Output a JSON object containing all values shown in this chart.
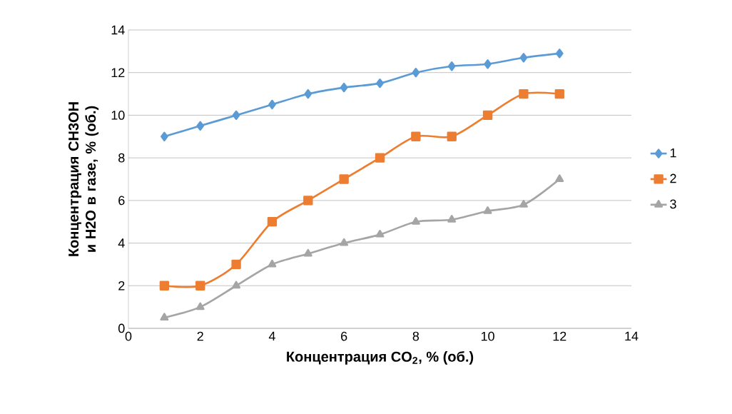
{
  "chart_data": {
    "type": "line",
    "xlabel": "Концентрация CO$_{2}$, % (об.)",
    "ylabel": "Концентрация CH3OH и H2O в газе, % (об.)",
    "x": [
      1,
      2,
      3,
      4,
      5,
      6,
      7,
      8,
      9,
      10,
      11,
      12
    ],
    "series": [
      {
        "name": "1",
        "color": "#5b9bd5",
        "marker": "diamond",
        "values": [
          9,
          9.5,
          10,
          10.5,
          11,
          11.3,
          11.5,
          12,
          12.3,
          12.4,
          12.7,
          12.9
        ]
      },
      {
        "name": "2",
        "color": "#ed7d31",
        "marker": "square",
        "values": [
          2,
          2,
          3,
          5,
          6,
          7,
          8,
          9,
          9,
          10,
          11,
          11
        ]
      },
      {
        "name": "3",
        "color": "#a5a5a5",
        "marker": "triangle",
        "values": [
          0.5,
          1,
          2,
          3,
          3.5,
          4,
          4.4,
          5,
          5.1,
          5.5,
          5.8,
          7
        ]
      }
    ],
    "xlim": [
      0,
      14
    ],
    "ylim": [
      0,
      14
    ],
    "xticks": [
      0,
      2,
      4,
      6,
      8,
      10,
      12,
      14
    ],
    "yticks": [
      0,
      2,
      4,
      6,
      8,
      10,
      12,
      14
    ],
    "grid": "y",
    "legend": "right",
    "line_style": "solid"
  }
}
